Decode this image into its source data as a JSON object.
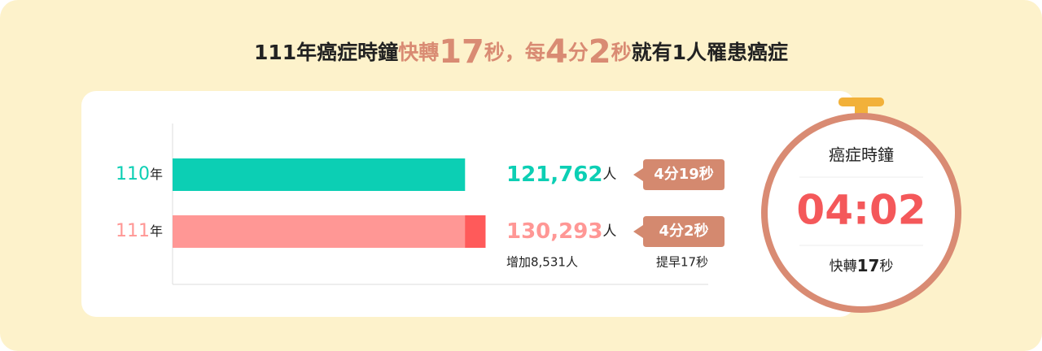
{
  "header": {
    "title_parts": [
      "111年癌症時鐘",
      "快轉",
      "17",
      "秒，",
      "每",
      "4",
      "分",
      "2",
      "秒",
      "就有1人罹患癌症"
    ]
  },
  "chart_data": {
    "type": "bar",
    "orientation": "horizontal",
    "categories": [
      "110",
      "111"
    ],
    "category_suffix": "年",
    "values": [
      121762,
      130293
    ],
    "value_labels": [
      "121,762",
      "130,293"
    ],
    "value_unit": "人",
    "colors": [
      "#0ccfb4",
      "#ff9795"
    ],
    "increase": 8531,
    "increase_label": "增加8,531人",
    "increase_color": "#ff5a5a",
    "xlim": [
      0,
      223000
    ],
    "time_labels": [
      "4分19秒",
      "4分2秒"
    ],
    "time_note": "提早17秒"
  },
  "clock": {
    "title": "癌症時鐘",
    "time": "04:02",
    "note_parts": [
      "快轉",
      "17",
      "秒"
    ]
  }
}
